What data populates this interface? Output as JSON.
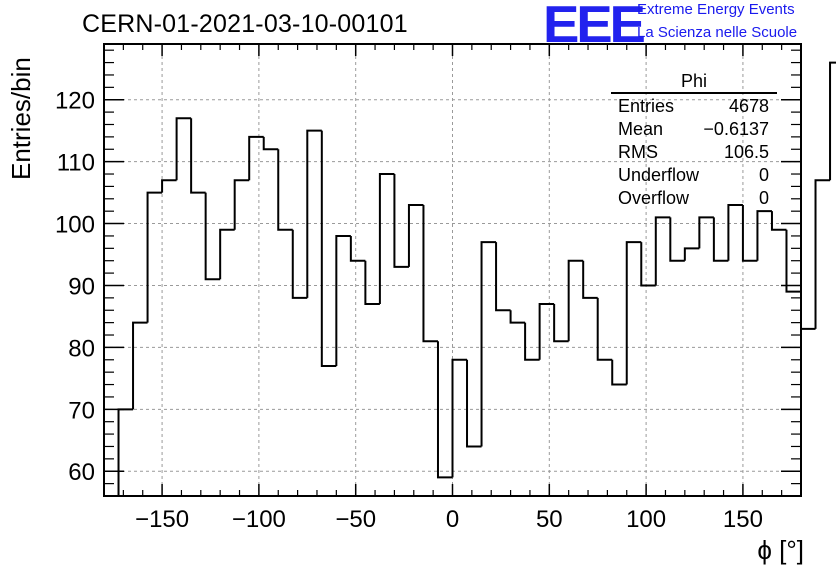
{
  "header": {
    "run_title": "CERN-01-2021-03-10-00101",
    "logo_text": "EEE",
    "logo_line1": "Extreme Energy Events",
    "logo_line2": "La Scienza nelle Scuole"
  },
  "stats_box": {
    "title": "Phi",
    "rows": [
      {
        "label": "Entries",
        "value": "4678"
      },
      {
        "label": "Mean",
        "value": "−0.6137"
      },
      {
        "label": "RMS",
        "value": "106.5"
      },
      {
        "label": "Underflow",
        "value": "0"
      },
      {
        "label": "Overflow",
        "value": "0"
      }
    ]
  },
  "colors": {
    "logo": "#2222ee",
    "line": "#000000",
    "grid": "#9a9a9a"
  },
  "chart_data": {
    "type": "histogram",
    "title": "CERN-01-2021-03-10-00101",
    "xlabel": "ϕ [°]",
    "ylabel": "Entries/bin",
    "xlim": [
      -180,
      180
    ],
    "ylim": [
      56,
      129
    ],
    "grid": true,
    "bin_width": 7.5,
    "x_start": -172.5,
    "x_ticks": [
      -150,
      -100,
      -50,
      0,
      50,
      100,
      150
    ],
    "x_tick_labels": [
      "−150",
      "−100",
      "−50",
      "0",
      "50",
      "100",
      "150"
    ],
    "y_ticks": [
      60,
      70,
      80,
      90,
      100,
      110,
      120
    ],
    "y_tick_labels": [
      "60",
      "70",
      "80",
      "90",
      "100",
      "110",
      "120"
    ],
    "values": [
      70,
      84,
      105,
      107,
      117,
      105,
      91,
      99,
      107,
      114,
      112,
      99,
      88,
      115,
      77,
      98,
      94,
      87,
      108,
      93,
      103,
      81,
      59,
      78,
      64,
      97,
      86,
      84,
      78,
      87,
      81,
      94,
      88,
      78,
      74,
      97,
      90,
      101,
      94,
      96,
      101,
      94,
      103,
      94,
      102,
      99,
      89,
      83,
      107,
      126
    ]
  }
}
